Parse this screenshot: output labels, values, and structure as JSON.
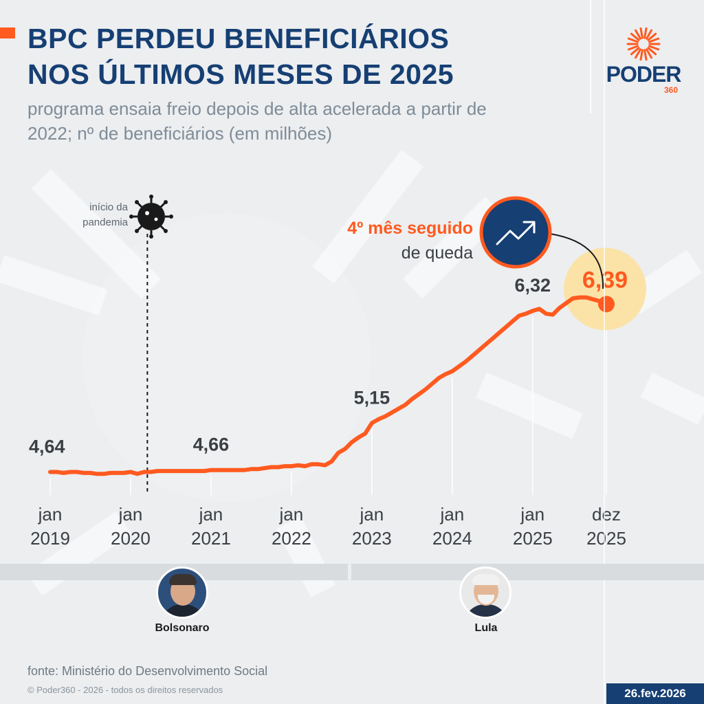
{
  "header": {
    "title_line1": "BPC PERDEU BENEFICIÁRIOS",
    "title_line2": "NOS ÚLTIMOS MESES DE 2025",
    "subtitle_line1": "programa ensaia freio depois de alta acelerada a partir de",
    "subtitle_line2": "2022; nº de beneficiários (em milhões)"
  },
  "logo": {
    "word": "PODER",
    "number": "360",
    "icon": "sun-rays-icon"
  },
  "annotations": {
    "pandemic_line1": "início da",
    "pandemic_line2": "pandemia",
    "pandemic_icon": "virus-icon",
    "callout_bold": "4º mês seguido",
    "callout_rest": "de queda",
    "callout_icon": "trend-arrow-icon"
  },
  "presidents": [
    {
      "name": "Bolsonaro"
    },
    {
      "name": "Lula"
    }
  ],
  "footer": {
    "source": "fonte: Ministério do Desenvolvimento Social",
    "copyright": "© Poder360 - 2026 - todos os direitos reservados",
    "date": "26.fev.2026"
  },
  "colors": {
    "line": "#ff5a1f",
    "navy": "#163f73",
    "highlight": "#fbe3a8",
    "label": "#3b3f44"
  },
  "chart_data": {
    "type": "line",
    "title": "BPC PERDEU BENEFICIÁRIOS NOS ÚLTIMOS MESES DE 2025",
    "ylabel": "nº de beneficiários (em milhões)",
    "ylim": [
      4.4,
      6.55
    ],
    "x_ticks": [
      {
        "month": 0,
        "line1": "jan",
        "line2": "2019"
      },
      {
        "month": 12,
        "line1": "jan",
        "line2": "2020"
      },
      {
        "month": 24,
        "line1": "jan",
        "line2": "2021"
      },
      {
        "month": 36,
        "line1": "jan",
        "line2": "2022"
      },
      {
        "month": 48,
        "line1": "jan",
        "line2": "2023"
      },
      {
        "month": 60,
        "line1": "jan",
        "line2": "2024"
      },
      {
        "month": 72,
        "line1": "jan",
        "line2": "2025"
      },
      {
        "month": 83,
        "line1": "dez",
        "line2": "2025"
      }
    ],
    "pandemic_month": 14.5,
    "bolsonaro_end_month": 47.5,
    "data_labels": [
      {
        "month": 0,
        "text": "4,64"
      },
      {
        "month": 24,
        "text": "4,66"
      },
      {
        "month": 48,
        "text": "5,15"
      },
      {
        "month": 72,
        "text": "6,32"
      },
      {
        "month": 83,
        "text": "6,39"
      }
    ],
    "series": [
      {
        "values": [
          {
            "x": 0,
            "y": 4.64
          },
          {
            "x": 1,
            "y": 4.64
          },
          {
            "x": 2,
            "y": 4.63
          },
          {
            "x": 3,
            "y": 4.64
          },
          {
            "x": 4,
            "y": 4.64
          },
          {
            "x": 5,
            "y": 4.63
          },
          {
            "x": 6,
            "y": 4.63
          },
          {
            "x": 7,
            "y": 4.62
          },
          {
            "x": 8,
            "y": 4.62
          },
          {
            "x": 9,
            "y": 4.63
          },
          {
            "x": 10,
            "y": 4.63
          },
          {
            "x": 11,
            "y": 4.63
          },
          {
            "x": 12,
            "y": 4.64
          },
          {
            "x": 13,
            "y": 4.62
          },
          {
            "x": 14,
            "y": 4.64
          },
          {
            "x": 15,
            "y": 4.64
          },
          {
            "x": 16,
            "y": 4.65
          },
          {
            "x": 17,
            "y": 4.65
          },
          {
            "x": 18,
            "y": 4.65
          },
          {
            "x": 19,
            "y": 4.65
          },
          {
            "x": 20,
            "y": 4.65
          },
          {
            "x": 21,
            "y": 4.65
          },
          {
            "x": 22,
            "y": 4.65
          },
          {
            "x": 23,
            "y": 4.65
          },
          {
            "x": 24,
            "y": 4.66
          },
          {
            "x": 25,
            "y": 4.66
          },
          {
            "x": 26,
            "y": 4.66
          },
          {
            "x": 27,
            "y": 4.66
          },
          {
            "x": 28,
            "y": 4.66
          },
          {
            "x": 29,
            "y": 4.66
          },
          {
            "x": 30,
            "y": 4.67
          },
          {
            "x": 31,
            "y": 4.67
          },
          {
            "x": 32,
            "y": 4.68
          },
          {
            "x": 33,
            "y": 4.69
          },
          {
            "x": 34,
            "y": 4.69
          },
          {
            "x": 35,
            "y": 4.7
          },
          {
            "x": 36,
            "y": 4.7
          },
          {
            "x": 37,
            "y": 4.71
          },
          {
            "x": 38,
            "y": 4.7
          },
          {
            "x": 39,
            "y": 4.72
          },
          {
            "x": 40,
            "y": 4.72
          },
          {
            "x": 41,
            "y": 4.71
          },
          {
            "x": 42,
            "y": 4.75
          },
          {
            "x": 43,
            "y": 4.84
          },
          {
            "x": 44,
            "y": 4.88
          },
          {
            "x": 45,
            "y": 4.95
          },
          {
            "x": 46,
            "y": 5.0
          },
          {
            "x": 47,
            "y": 5.04
          },
          {
            "x": 48,
            "y": 5.15
          },
          {
            "x": 49,
            "y": 5.19
          },
          {
            "x": 50,
            "y": 5.22
          },
          {
            "x": 51,
            "y": 5.26
          },
          {
            "x": 52,
            "y": 5.3
          },
          {
            "x": 53,
            "y": 5.34
          },
          {
            "x": 54,
            "y": 5.4
          },
          {
            "x": 55,
            "y": 5.45
          },
          {
            "x": 56,
            "y": 5.5
          },
          {
            "x": 57,
            "y": 5.56
          },
          {
            "x": 58,
            "y": 5.62
          },
          {
            "x": 59,
            "y": 5.66
          },
          {
            "x": 60,
            "y": 5.69
          },
          {
            "x": 61,
            "y": 5.74
          },
          {
            "x": 62,
            "y": 5.79
          },
          {
            "x": 63,
            "y": 5.85
          },
          {
            "x": 64,
            "y": 5.91
          },
          {
            "x": 65,
            "y": 5.97
          },
          {
            "x": 66,
            "y": 6.03
          },
          {
            "x": 67,
            "y": 6.09
          },
          {
            "x": 68,
            "y": 6.15
          },
          {
            "x": 69,
            "y": 6.21
          },
          {
            "x": 70,
            "y": 6.27
          },
          {
            "x": 71,
            "y": 6.29
          },
          {
            "x": 72,
            "y": 6.32
          },
          {
            "x": 73,
            "y": 6.34
          },
          {
            "x": 74,
            "y": 6.29
          },
          {
            "x": 75,
            "y": 6.28
          },
          {
            "x": 76,
            "y": 6.35
          },
          {
            "x": 77,
            "y": 6.4
          },
          {
            "x": 78,
            "y": 6.45
          },
          {
            "x": 79,
            "y": 6.46
          },
          {
            "x": 80,
            "y": 6.46
          },
          {
            "x": 81,
            "y": 6.44
          },
          {
            "x": 82,
            "y": 6.42
          },
          {
            "x": 83,
            "y": 6.39
          }
        ]
      }
    ]
  }
}
